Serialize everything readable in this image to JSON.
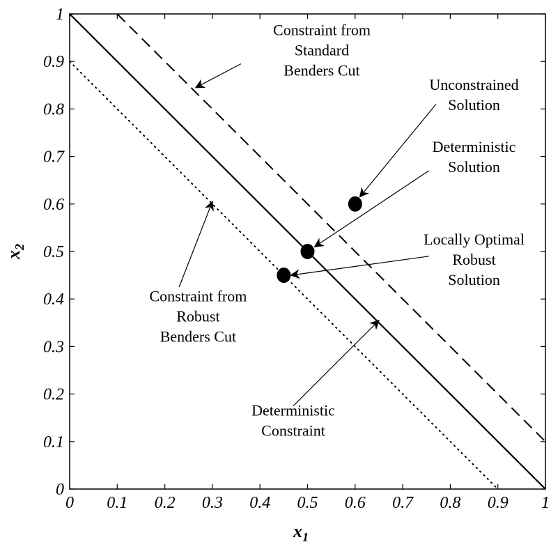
{
  "chart_data": {
    "type": "line",
    "title": "",
    "xlabel": "x",
    "xlabel_sub": "1",
    "ylabel": "x",
    "ylabel_sub": "2",
    "xlim": [
      0,
      1
    ],
    "ylim": [
      0,
      1
    ],
    "grid": false,
    "legend": "none",
    "xticks": [
      0,
      0.1,
      0.2,
      0.3,
      0.4,
      0.5,
      0.6,
      0.7,
      0.8,
      0.9,
      1
    ],
    "yticks": [
      0,
      0.1,
      0.2,
      0.3,
      0.4,
      0.5,
      0.6,
      0.7,
      0.8,
      0.9,
      1
    ],
    "xtick_labels": [
      "0",
      "0.1",
      "0.2",
      "0.3",
      "0.4",
      "0.5",
      "0.6",
      "0.7",
      "0.8",
      "0.9",
      "1"
    ],
    "ytick_labels": [
      "0",
      "0.1",
      "0.2",
      "0.3",
      "0.4",
      "0.5",
      "0.6",
      "0.7",
      "0.8",
      "0.9",
      "1"
    ],
    "lines": [
      {
        "id": "standard-benders",
        "style": "dashed",
        "x": [
          0.1,
          1.0
        ],
        "y": [
          1.0,
          0.1
        ]
      },
      {
        "id": "deterministic",
        "style": "solid",
        "x": [
          0.0,
          1.0
        ],
        "y": [
          1.0,
          0.0
        ]
      },
      {
        "id": "robust-benders",
        "style": "dotted",
        "x": [
          0.0,
          0.9
        ],
        "y": [
          0.9,
          0.0
        ]
      }
    ],
    "points": [
      {
        "id": "unconstrained",
        "x": 0.6,
        "y": 0.6
      },
      {
        "id": "deterministic-solution",
        "x": 0.5,
        "y": 0.5
      },
      {
        "id": "robust-solution",
        "x": 0.45,
        "y": 0.45
      }
    ],
    "annotations": [
      {
        "id": "standard-benders-label",
        "lines": [
          "Constraint from",
          "Standard",
          "Benders Cut"
        ],
        "x": 0.53,
        "y": 0.955,
        "arrow_from": [
          0.36,
          0.895
        ],
        "arrow_to": [
          0.265,
          0.845
        ]
      },
      {
        "id": "unconstrained-label",
        "lines": [
          "Unconstrained",
          "Solution"
        ],
        "x": 0.85,
        "y": 0.84,
        "arrow_from": [
          0.77,
          0.81
        ],
        "arrow_to": [
          0.61,
          0.615
        ]
      },
      {
        "id": "deterministic-solution-label",
        "lines": [
          "Deterministic",
          "Solution"
        ],
        "x": 0.85,
        "y": 0.71,
        "arrow_from": [
          0.755,
          0.67
        ],
        "arrow_to": [
          0.515,
          0.51
        ]
      },
      {
        "id": "robust-solution-label",
        "lines": [
          "Locally Optimal",
          "Robust",
          "Solution"
        ],
        "x": 0.85,
        "y": 0.515,
        "arrow_from": [
          0.755,
          0.49
        ],
        "arrow_to": [
          0.465,
          0.45
        ]
      },
      {
        "id": "robust-benders-label",
        "lines": [
          "Constraint from",
          "Robust",
          "Benders Cut"
        ],
        "x": 0.27,
        "y": 0.395,
        "arrow_from": [
          0.23,
          0.425
        ],
        "arrow_to": [
          0.3,
          0.605
        ]
      },
      {
        "id": "deterministic-constraint-label",
        "lines": [
          "Deterministic",
          "Constraint"
        ],
        "x": 0.47,
        "y": 0.155,
        "arrow_from": [
          0.47,
          0.175
        ],
        "arrow_to": [
          0.65,
          0.355
        ]
      }
    ]
  }
}
